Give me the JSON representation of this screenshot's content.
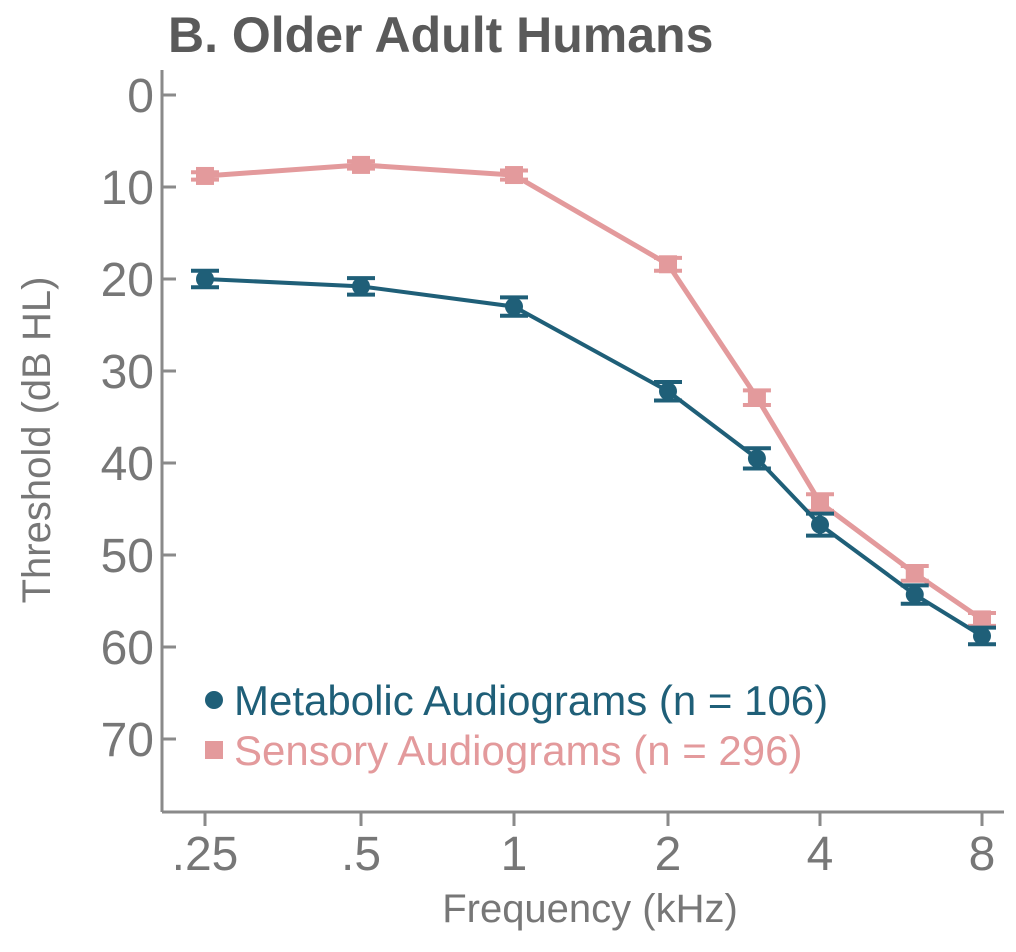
{
  "chart_data": {
    "type": "line",
    "title": "B. Older Adult Humans",
    "xlabel": "Frequency (kHz)",
    "ylabel": "Threshold (dB HL)",
    "x_scale": "log",
    "y_inverted": true,
    "ylim": [
      0,
      78
    ],
    "x_tick_labels": [
      ".25",
      ".5",
      "1",
      "2",
      "4",
      "8"
    ],
    "x_tick_values": [
      0.25,
      0.5,
      1,
      2,
      4,
      8
    ],
    "y_tick_values": [
      0,
      10,
      20,
      30,
      40,
      50,
      60,
      70
    ],
    "y_tick_labels": [
      "0",
      "10",
      "20",
      "30",
      "40",
      "50",
      "60",
      "70"
    ],
    "legend_position": "bottom",
    "series": [
      {
        "name": "Metabolic Audiograms (n = 106)",
        "color": "#1f5f78",
        "marker": "circle",
        "x": [
          0.25,
          0.5,
          1,
          2,
          3,
          4,
          6,
          8
        ],
        "y": [
          20,
          20.8,
          23,
          32.2,
          39.5,
          46.7,
          54.3,
          58.8
        ],
        "error": [
          0.9,
          0.9,
          1.0,
          1.0,
          1.1,
          1.2,
          1.0,
          0.9
        ]
      },
      {
        "name": "Sensory Audiograms (n = 296)",
        "color": "#e39a9c",
        "marker": "square",
        "x": [
          0.25,
          0.5,
          1,
          2,
          3,
          4,
          6,
          8
        ],
        "y": [
          8.8,
          7.6,
          8.7,
          18.4,
          32.9,
          44.3,
          52,
          57
        ],
        "error": [
          0.4,
          0.4,
          0.5,
          0.7,
          0.8,
          0.9,
          0.8,
          0.7
        ]
      }
    ]
  }
}
